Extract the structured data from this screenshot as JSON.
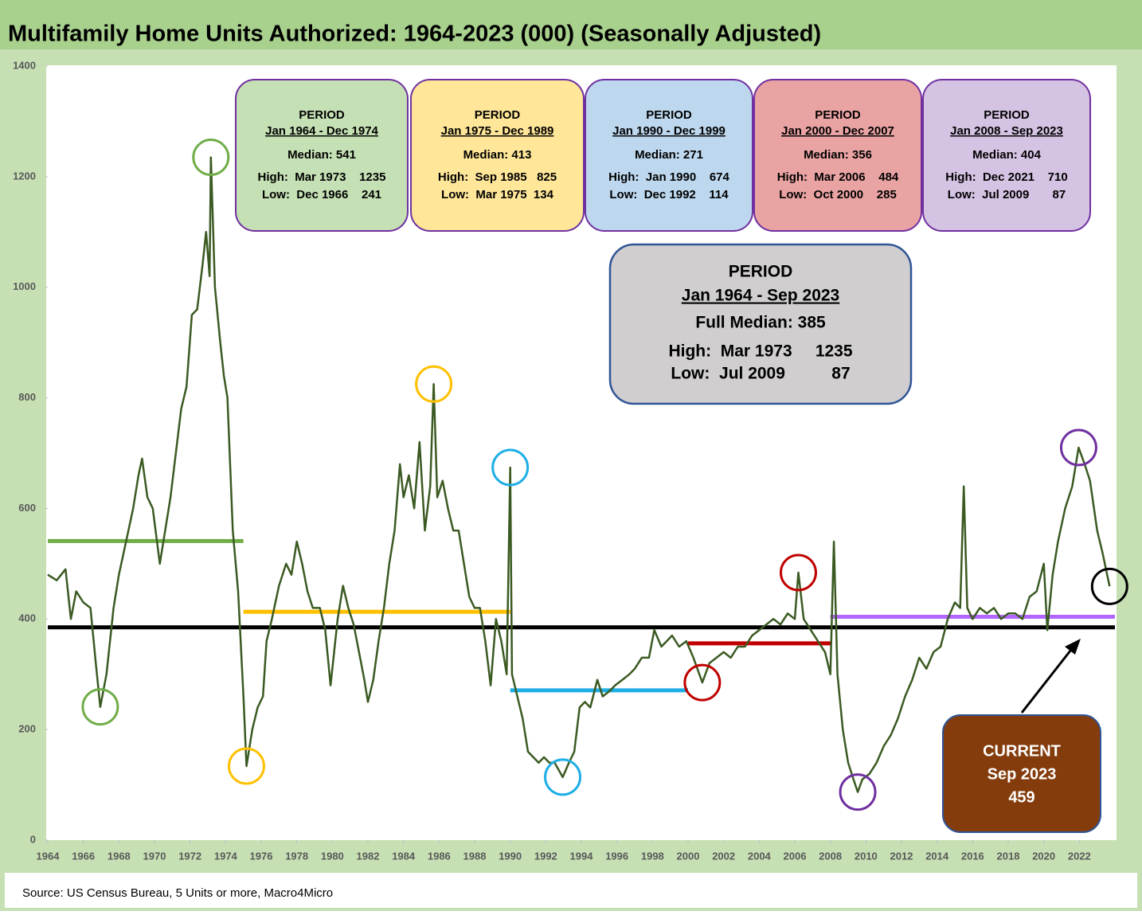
{
  "chart_data": {
    "type": "line",
    "title": "Multifamily Home Units Authorized: 1964-2023 (000) (Seasonally Adjusted)",
    "source": "Source: US Census Bureau, 5 Units or more, Macro4Micro",
    "xlim": [
      1964,
      2024
    ],
    "xticks": [
      1964,
      1966,
      1968,
      1970,
      1972,
      1974,
      1976,
      1978,
      1980,
      1982,
      1984,
      1986,
      1988,
      1990,
      1992,
      1994,
      1996,
      1998,
      2000,
      2002,
      2004,
      2006,
      2008,
      2010,
      2012,
      2014,
      2016,
      2018,
      2020,
      2022
    ],
    "ylim": [
      0,
      1400
    ],
    "yticks": [
      0,
      200,
      400,
      600,
      800,
      1000,
      1200,
      1400
    ],
    "series": [
      {
        "color": "#3b5a22",
        "x": [
          1964.0,
          1964.5,
          1965.0,
          1965.3,
          1965.6,
          1966.0,
          1966.4,
          1966.7,
          1966.95,
          1967.3,
          1967.7,
          1968.0,
          1968.4,
          1968.8,
          1969.1,
          1969.3,
          1969.6,
          1969.9,
          1970.3,
          1970.6,
          1970.9,
          1971.2,
          1971.5,
          1971.8,
          1972.1,
          1972.4,
          1972.7,
          1972.9,
          1973.1,
          1973.17,
          1973.4,
          1973.7,
          1973.9,
          1974.1,
          1974.4,
          1974.7,
          1975.0,
          1975.17,
          1975.5,
          1975.8,
          1976.1,
          1976.3,
          1976.6,
          1977.0,
          1977.4,
          1977.7,
          1978.0,
          1978.3,
          1978.6,
          1978.9,
          1979.3,
          1979.6,
          1979.9,
          1980.3,
          1980.6,
          1980.9,
          1981.2,
          1981.5,
          1981.8,
          1982.0,
          1982.3,
          1982.6,
          1982.9,
          1983.2,
          1983.5,
          1983.8,
          1984.0,
          1984.3,
          1984.6,
          1984.9,
          1985.2,
          1985.5,
          1985.7,
          1985.9,
          1986.2,
          1986.5,
          1986.8,
          1987.1,
          1987.4,
          1987.7,
          1988.0,
          1988.3,
          1988.6,
          1988.9,
          1989.2,
          1989.5,
          1989.8,
          1990.0,
          1990.1,
          1990.4,
          1990.7,
          1991.0,
          1991.3,
          1991.6,
          1991.9,
          1992.2,
          1992.5,
          1992.95,
          1993.3,
          1993.6,
          1993.9,
          1994.2,
          1994.5,
          1994.9,
          1995.2,
          1995.6,
          1995.9,
          1996.3,
          1996.7,
          1997.0,
          1997.4,
          1997.8,
          1998.1,
          1998.5,
          1998.8,
          1999.1,
          1999.5,
          1999.9,
          2000.3,
          2000.8,
          2001.2,
          2001.6,
          2002.0,
          2002.4,
          2002.8,
          2003.2,
          2003.6,
          2004.0,
          2004.4,
          2004.8,
          2005.2,
          2005.6,
          2006.0,
          2006.2,
          2006.5,
          2006.9,
          2007.3,
          2007.7,
          2008.0,
          2008.2,
          2008.4,
          2008.7,
          2009.0,
          2009.3,
          2009.54,
          2009.8,
          2010.2,
          2010.6,
          2011.0,
          2011.4,
          2011.8,
          2012.2,
          2012.6,
          2013.0,
          2013.4,
          2013.8,
          2014.2,
          2014.6,
          2015.0,
          2015.3,
          2015.5,
          2015.7,
          2016.0,
          2016.4,
          2016.8,
          2017.2,
          2017.6,
          2018.0,
          2018.4,
          2018.8,
          2019.2,
          2019.6,
          2020.0,
          2020.2,
          2020.5,
          2020.8,
          2021.2,
          2021.6,
          2021.96,
          2022.3,
          2022.6,
          2023.0,
          2023.3,
          2023.7
        ],
        "values": [
          480,
          470,
          490,
          400,
          450,
          430,
          420,
          320,
          241,
          300,
          420,
          480,
          540,
          600,
          660,
          690,
          620,
          600,
          500,
          560,
          620,
          700,
          780,
          820,
          950,
          960,
          1040,
          1100,
          1020,
          1235,
          1000,
          900,
          840,
          800,
          560,
          450,
          260,
          134,
          200,
          240,
          260,
          360,
          400,
          460,
          500,
          480,
          540,
          500,
          450,
          420,
          420,
          380,
          280,
          400,
          460,
          420,
          390,
          340,
          290,
          250,
          290,
          360,
          420,
          500,
          560,
          680,
          620,
          660,
          600,
          720,
          560,
          640,
          825,
          620,
          650,
          600,
          560,
          560,
          500,
          440,
          420,
          420,
          360,
          280,
          400,
          360,
          300,
          674,
          300,
          260,
          220,
          160,
          150,
          140,
          150,
          140,
          140,
          114,
          140,
          160,
          240,
          250,
          240,
          290,
          260,
          270,
          280,
          290,
          300,
          310,
          330,
          330,
          380,
          350,
          360,
          370,
          350,
          360,
          330,
          285,
          320,
          330,
          340,
          330,
          350,
          350,
          370,
          380,
          390,
          400,
          390,
          410,
          400,
          484,
          400,
          380,
          360,
          340,
          300,
          540,
          300,
          200,
          140,
          110,
          87,
          110,
          120,
          140,
          170,
          190,
          220,
          260,
          290,
          330,
          310,
          340,
          350,
          400,
          430,
          420,
          640,
          420,
          400,
          420,
          410,
          420,
          400,
          410,
          410,
          400,
          440,
          450,
          500,
          380,
          480,
          540,
          600,
          640,
          710,
          680,
          650,
          560,
          520,
          459
        ]
      }
    ],
    "periods": [
      {
        "heading": "PERIOD",
        "period": "Jan 1964 - Dec 1974",
        "median_label": "Median: 541",
        "high": "High:  Mar 1973    1235",
        "low": "Low:  Dec 1966    241",
        "median": 541,
        "start": 1964,
        "end": 1975,
        "fill": "#c5e0b4",
        "color": "#70ad47"
      },
      {
        "heading": "PERIOD",
        "period": "Jan 1975 - Dec 1989",
        "median_label": "Median: 413",
        "high": "High:  Sep 1985   825",
        "low": "Low:  Mar 1975  134",
        "median": 413,
        "start": 1975,
        "end": 1990,
        "fill": "#ffe699",
        "color": "#ffc000"
      },
      {
        "heading": "PERIOD",
        "period": "Jan 1990 - Dec 1999",
        "median_label": "Median: 271",
        "high": "High:  Jan 1990    674",
        "low": "Low:  Dec 1992    114",
        "median": 271,
        "start": 1990,
        "end": 2000,
        "fill": "#bdd7ee",
        "color": "#1eaee6"
      },
      {
        "heading": "PERIOD",
        "period": "Jan 2000 - Dec 2007",
        "median_label": "Median: 356",
        "high": "High:  Mar 2006    484",
        "low": "Low:  Oct 2000    285",
        "median": 356,
        "start": 2000,
        "end": 2008,
        "fill": "#eaa3a3",
        "color": "#c00000"
      },
      {
        "heading": "PERIOD",
        "period": "Jan 2008 - Sep 2023",
        "median_label": "Median: 404",
        "high": "High:  Dec 2021    710",
        "low": "Low:  Jul 2009       87",
        "median": 404,
        "start": 2008,
        "end": 2024,
        "fill": "#d5c3e3",
        "color": "#b266ff"
      }
    ],
    "full": {
      "heading": "PERIOD",
      "period": "Jan 1964 - Sep 2023",
      "median_label": "Full Median: 385",
      "high": "High:  Mar 1973     1235",
      "low": "Low:  Jul 2009          87",
      "median": 385,
      "color": "#000000"
    },
    "current": {
      "heading": "CURRENT",
      "date": "Sep 2023",
      "value": 459
    },
    "highlights": [
      {
        "x": 1973.17,
        "y": 1235,
        "color": "#70ad47"
      },
      {
        "x": 1966.95,
        "y": 241,
        "color": "#70ad47"
      },
      {
        "x": 1975.17,
        "y": 134,
        "color": "#ffc000"
      },
      {
        "x": 1985.7,
        "y": 825,
        "color": "#ffc000"
      },
      {
        "x": 1990.0,
        "y": 674,
        "color": "#1eaee6"
      },
      {
        "x": 1992.95,
        "y": 114,
        "color": "#1eaee6"
      },
      {
        "x": 2006.2,
        "y": 484,
        "color": "#c00000"
      },
      {
        "x": 2000.8,
        "y": 285,
        "color": "#c00000"
      },
      {
        "x": 2021.96,
        "y": 710,
        "color": "#7030a0"
      },
      {
        "x": 2009.54,
        "y": 87,
        "color": "#7030a0"
      },
      {
        "x": 2023.7,
        "y": 459,
        "color": "#000000"
      }
    ]
  }
}
